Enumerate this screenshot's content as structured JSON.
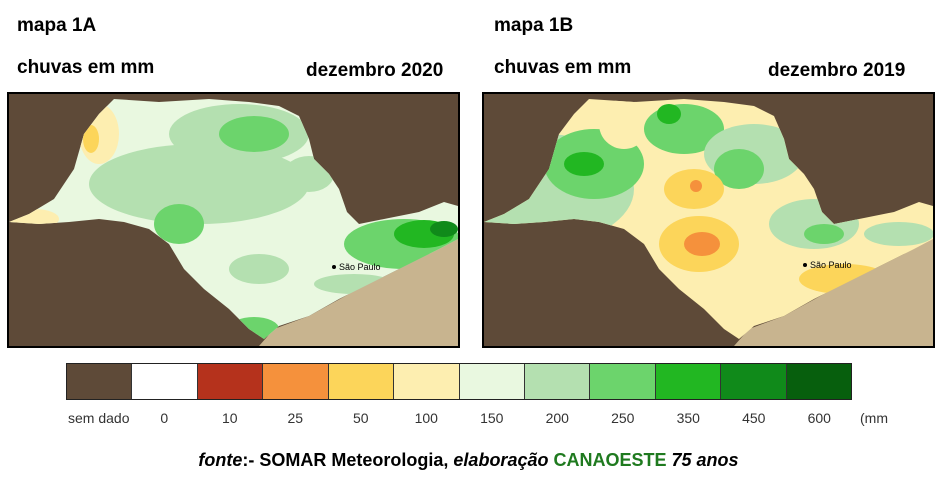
{
  "map_a": {
    "title": "mapa 1A",
    "subtitle": "chuvas em mm",
    "date": "dezembro 2020",
    "city": "São Paulo"
  },
  "map_b": {
    "title": "mapa 1B",
    "subtitle": "chuvas em mm",
    "date": "dezembro 2019",
    "city": "São Paulo"
  },
  "legend": {
    "items": [
      {
        "label": "sem dado",
        "color": "#5e4a38"
      },
      {
        "label": "0",
        "color": "#ffffff"
      },
      {
        "label": "10",
        "color": "#b5321c"
      },
      {
        "label": "25",
        "color": "#f5913c"
      },
      {
        "label": "50",
        "color": "#fcd55a"
      },
      {
        "label": "100",
        "color": "#fdeeb0"
      },
      {
        "label": "150",
        "color": "#e9f8e0"
      },
      {
        "label": "200",
        "color": "#b4e0b0"
      },
      {
        "label": "250",
        "color": "#6cd46c"
      },
      {
        "label": "350",
        "color": "#22b722"
      },
      {
        "label": "450",
        "color": "#108a1a"
      },
      {
        "label": "600",
        "color": "#075f0d"
      }
    ],
    "unit": "(mm"
  },
  "source": {
    "fonte": "fonte",
    "sep": ":- SOMAR Meteorologia, ",
    "elab": "elaboração",
    "org": "CANAOESTE",
    "years": "75 anos"
  },
  "colors": {
    "no_data": "#5e4a38",
    "ocean": "#c8b48f"
  }
}
